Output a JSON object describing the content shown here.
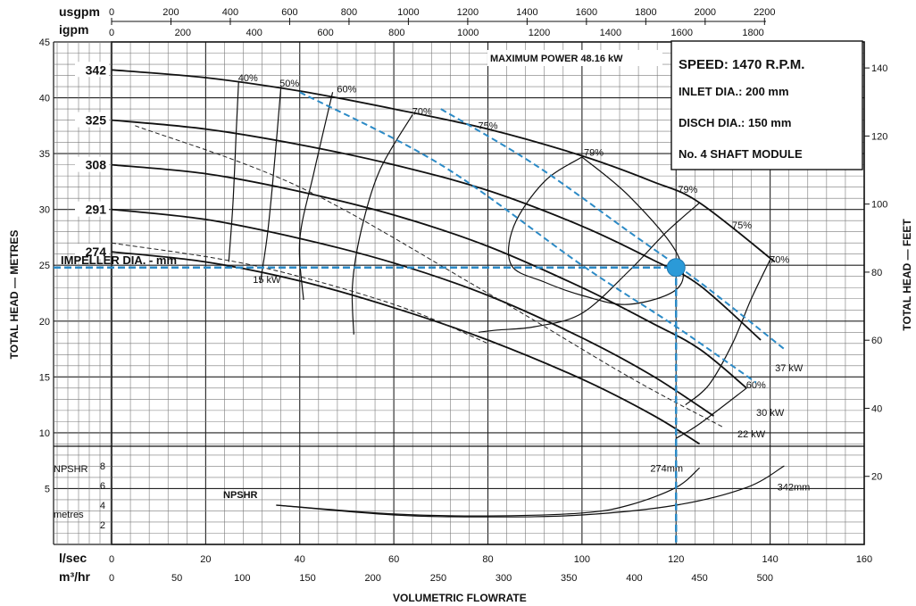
{
  "chart_data": {
    "type": "line",
    "title": "",
    "xlabel": "VOLUMETRIC FLOWRATE",
    "ylabel_left": "TOTAL HEAD — METRES",
    "ylabel_right": "TOTAL HEAD — FEET",
    "ylim": [
      0,
      45
    ],
    "xlim": [
      0,
      160
    ],
    "axes": {
      "lsec": {
        "unit": "l/sec",
        "ticks": [
          0,
          20,
          40,
          60,
          80,
          100,
          120,
          140,
          160
        ]
      },
      "m3hr": {
        "unit": "m³/hr",
        "ticks": [
          0,
          50,
          100,
          150,
          200,
          250,
          300,
          350,
          400,
          450,
          500
        ]
      },
      "usgpm": {
        "unit": "usgpm",
        "ticks": [
          0,
          200,
          400,
          600,
          800,
          1000,
          1200,
          1400,
          1600,
          1800,
          2000,
          2200
        ]
      },
      "igpm": {
        "unit": "igpm",
        "ticks": [
          0,
          200,
          400,
          600,
          800,
          1000,
          1200,
          1400,
          1600,
          1800
        ]
      },
      "metres": {
        "ticks": [
          5,
          10,
          15,
          20,
          25,
          30,
          35,
          40,
          45
        ]
      },
      "feet": {
        "ticks": [
          20,
          40,
          60,
          80,
          100,
          120,
          140
        ]
      },
      "npshr_ticks": [
        2,
        4,
        6,
        8
      ]
    },
    "info": {
      "speed": "SPEED: 1470 R.P.M.",
      "inlet": "INLET DIA.: 200 mm",
      "disch": "DISCH DIA.: 150 mm",
      "module": "No. 4 SHAFT MODULE",
      "max_power": "MAXIMUM POWER 48.16 kW"
    },
    "impeller_label": "IMPELLER DIA. - mm",
    "npshr_label": "NPSHR",
    "npshr_axis_label": "NPSHR",
    "npshr_unit": "metres",
    "series": [
      {
        "name": "342",
        "x": [
          0,
          20,
          40,
          60,
          80,
          100,
          115,
          125,
          141
        ],
        "y": [
          42.5,
          41.8,
          40.6,
          39.0,
          37.2,
          34.8,
          32.5,
          30.6,
          25.3
        ]
      },
      {
        "name": "325",
        "x": [
          0,
          20,
          40,
          60,
          80,
          100,
          115,
          125,
          138
        ],
        "y": [
          38.0,
          37.2,
          35.8,
          34.0,
          31.7,
          28.5,
          25.5,
          23.2,
          18.3
        ]
      },
      {
        "name": "308",
        "x": [
          0,
          20,
          40,
          60,
          80,
          100,
          115,
          125,
          135
        ],
        "y": [
          34.0,
          33.2,
          31.6,
          29.5,
          26.7,
          23.0,
          19.8,
          17.5,
          14.0
        ]
      },
      {
        "name": "291",
        "x": [
          0,
          20,
          40,
          60,
          80,
          100,
          115,
          128
        ],
        "y": [
          30.0,
          29.1,
          27.4,
          25.2,
          22.3,
          18.5,
          15.1,
          11.5
        ]
      },
      {
        "name": "274",
        "x": [
          0,
          20,
          40,
          60,
          80,
          100,
          115,
          125
        ],
        "y": [
          26.2,
          25.3,
          23.6,
          21.2,
          18.3,
          14.8,
          11.6,
          9.0
        ]
      }
    ],
    "efficiency_lines": [
      {
        "label": "40%",
        "x": [
          27,
          26.5,
          25.8,
          24.9
        ],
        "y": [
          41.5,
          37.0,
          30.5,
          25.3
        ]
      },
      {
        "label": "50%",
        "x": [
          36,
          34.7,
          33.2,
          31.6
        ],
        "y": [
          41.0,
          34.5,
          28.0,
          23.4
        ]
      },
      {
        "label": "60%",
        "x": [
          47,
          43,
          40,
          40.8
        ],
        "y": [
          40.5,
          33.3,
          27.3,
          21.9
        ]
      },
      {
        "label": "70%",
        "x": [
          64,
          57,
          53,
          51.2,
          51.5
        ],
        "y": [
          38.5,
          33.5,
          28.0,
          23.2,
          18.8
        ]
      },
      {
        "label": "79%",
        "x": [
          100,
          110,
          120,
          120.5,
          110,
          100,
          92,
          85,
          85.5,
          92,
          100
        ],
        "y": [
          34.7,
          31.2,
          26.2,
          23.0,
          21.5,
          22.3,
          23.5,
          25.0,
          28.5,
          32.5,
          34.7
        ]
      },
      {
        "label": "75%",
        "x": [
          125,
          118,
          110,
          100,
          90,
          82,
          78
        ],
        "y": [
          30.6,
          28.0,
          24.5,
          20.7,
          19.5,
          19.2,
          19.0
        ]
      },
      {
        "label": "70%",
        "x": [
          140,
          136,
          132,
          127,
          122
        ],
        "y": [
          25.5,
          22.0,
          18.0,
          14.3,
          12.5
        ]
      },
      {
        "label": "60%",
        "x": [
          135,
          125,
          120
        ],
        "y": [
          14.0,
          10.8,
          9.5
        ]
      }
    ],
    "efficiency_labels": [
      {
        "text": "40%",
        "x": 29,
        "y": 41.5
      },
      {
        "text": "50%",
        "x": 37.8,
        "y": 41.0
      },
      {
        "text": "60%",
        "x": 50,
        "y": 40.5
      },
      {
        "text": "70%",
        "x": 66,
        "y": 38.5
      },
      {
        "text": "75%",
        "x": 80,
        "y": 37.2
      },
      {
        "text": "79%",
        "x": 102.5,
        "y": 34.8
      },
      {
        "text": "79%",
        "x": 122.5,
        "y": 31.5
      },
      {
        "text": "75%",
        "x": 134,
        "y": 28.3
      },
      {
        "text": "70%",
        "x": 142,
        "y": 25.2
      },
      {
        "text": "60%",
        "x": 137,
        "y": 14.0
      }
    ],
    "power_lines": [
      {
        "label": "15 kW",
        "x": [
          0,
          30,
          60,
          80
        ],
        "y": [
          27.0,
          25.0,
          21.5,
          18.0
        ],
        "highlight": false
      },
      {
        "label": "22 kW",
        "x": [
          5,
          40,
          80,
          110,
          130
        ],
        "y": [
          37.5,
          32.0,
          22.5,
          15.0,
          10.5
        ],
        "highlight": false
      },
      {
        "label": "30 kW",
        "x": [
          40,
          70,
          100,
          120,
          137
        ],
        "y": [
          40.5,
          34.0,
          25.0,
          19.5,
          14.5
        ],
        "highlight": true
      },
      {
        "label": "37 kW",
        "x": [
          70,
          90,
          110,
          125,
          143
        ],
        "y": [
          39.0,
          34.0,
          28.0,
          23.5,
          17.5
        ],
        "highlight": true
      }
    ],
    "power_labels": [
      {
        "text": "15 kW",
        "x": 33,
        "y": 23.4
      },
      {
        "text": "22 kW",
        "x": 136,
        "y": 9.6
      },
      {
        "text": "30 kW",
        "x": 140,
        "y": 11.5
      },
      {
        "text": "37 kW",
        "x": 144,
        "y": 15.5
      }
    ],
    "impeller_labels": [
      {
        "text": "274mm",
        "x": 118,
        "y": 7.4
      },
      {
        "text": "342mm",
        "x": 145,
        "y": 5.5
      }
    ],
    "npshr": [
      {
        "name": "274mm",
        "x": [
          35,
          60,
          80,
          100,
          110,
          120,
          125
        ],
        "y": [
          4.0,
          3.1,
          2.9,
          3.2,
          4.0,
          5.8,
          7.8
        ]
      },
      {
        "name": "342mm",
        "x": [
          35,
          60,
          80,
          100,
          120,
          135,
          143
        ],
        "y": [
          4.0,
          3.0,
          2.8,
          3.0,
          4.0,
          5.8,
          8.0
        ]
      }
    ],
    "operating_point": {
      "x": 120,
      "y": 24.8
    },
    "grid": true
  }
}
